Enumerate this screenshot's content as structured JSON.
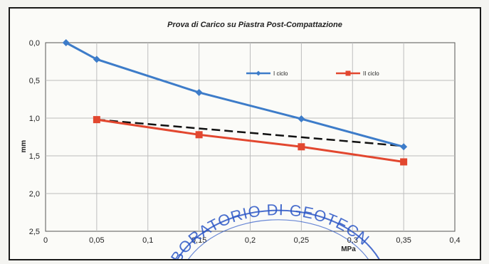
{
  "chart_data": {
    "type": "line",
    "title": "Prova di Carico su Piastra Post-Compattazione",
    "xlabel": "MPa",
    "ylabel": "mm",
    "xlim": [
      0,
      0.4
    ],
    "ylim": [
      0,
      2.5
    ],
    "y_inverted": true,
    "x_ticks": [
      "0",
      "0,05",
      "0,1",
      "0,15",
      "0,2",
      "0,25",
      "0,3",
      "0,35",
      "0,4"
    ],
    "y_ticks": [
      "0,0",
      "0,5",
      "1,0",
      "1,5",
      "2,0",
      "2,5"
    ],
    "grid": true,
    "legend_position": "top-right",
    "series": [
      {
        "name": "I ciclo",
        "color": "#3d7cc9",
        "marker": "diamond",
        "x": [
          0.02,
          0.05,
          0.15,
          0.25,
          0.35
        ],
        "y": [
          0.0,
          0.22,
          0.66,
          1.01,
          1.38
        ]
      },
      {
        "name": "II ciclo",
        "color": "#e2472f",
        "marker": "square",
        "x": [
          0.05,
          0.15,
          0.25,
          0.35
        ],
        "y": [
          1.02,
          1.22,
          1.38,
          1.58
        ]
      }
    ],
    "reference_line": {
      "style": "dashed",
      "color": "#111111",
      "x": [
        0.05,
        0.35
      ],
      "y": [
        1.02,
        1.37
      ]
    }
  },
  "stamp": {
    "text": "BORATORIO DI GEOTECN",
    "color": "#2b56c6"
  }
}
